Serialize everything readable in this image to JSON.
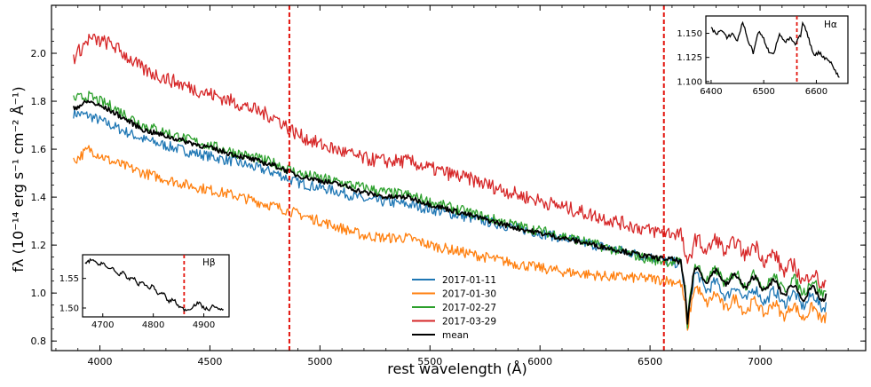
{
  "chart_data": {
    "type": "line",
    "xlabel": "rest wavelength (Å)",
    "ylabel": "fλ (10⁻¹⁴ erg s⁻¹ cm⁻² Å⁻¹)",
    "xlim": [
      3780,
      7480
    ],
    "ylim": [
      0.76,
      2.2
    ],
    "xticks": [
      4000,
      4500,
      5000,
      5500,
      6000,
      6500,
      7000
    ],
    "yticks": [
      0.8,
      1.0,
      1.2,
      1.4,
      1.6,
      1.8,
      2.0
    ],
    "xtick_labels": [
      "4000",
      "4500",
      "5000",
      "5500",
      "6000",
      "6500",
      "7000"
    ],
    "ytick_labels": [
      "0.8",
      "1.0",
      "1.2",
      "1.4",
      "1.6",
      "1.8",
      "2.0"
    ],
    "vlines": [
      {
        "x": 4861,
        "color": "#e3120b",
        "style": "dashed"
      },
      {
        "x": 6563,
        "color": "#e3120b",
        "style": "dashed"
      }
    ],
    "legend_position": "bottom-center",
    "series": [
      {
        "name": "2017-01-11",
        "color": "#1f77b4",
        "x": [
          3880,
          3950,
          4050,
          4200,
          4400,
          4600,
          4800,
          4900,
          5000,
          5100,
          5200,
          5300,
          5400,
          5500,
          5700,
          5900,
          6100,
          6300,
          6500,
          6600,
          6640,
          6660,
          6670,
          6680,
          6700,
          6800,
          6900,
          7000,
          7100,
          7200,
          7300
        ],
        "y": [
          1.75,
          1.74,
          1.7,
          1.64,
          1.59,
          1.55,
          1.5,
          1.46,
          1.44,
          1.42,
          1.39,
          1.38,
          1.37,
          1.35,
          1.31,
          1.27,
          1.23,
          1.19,
          1.15,
          1.13,
          1.12,
          1.0,
          0.86,
          0.95,
          1.06,
          1.02,
          1.0,
          0.99,
          0.98,
          0.97,
          0.96
        ]
      },
      {
        "name": "2017-01-30",
        "color": "#ff7f0e",
        "x": [
          3880,
          3950,
          4050,
          4200,
          4400,
          4600,
          4800,
          4900,
          5000,
          5100,
          5200,
          5300,
          5400,
          5500,
          5700,
          5900,
          6100,
          6300,
          6500,
          6600,
          6640,
          6660,
          6670,
          6680,
          6700,
          6800,
          6900,
          7000,
          7100,
          7200,
          7300
        ],
        "y": [
          1.55,
          1.6,
          1.55,
          1.5,
          1.45,
          1.41,
          1.36,
          1.33,
          1.3,
          1.27,
          1.24,
          1.23,
          1.23,
          1.2,
          1.16,
          1.12,
          1.09,
          1.07,
          1.06,
          1.05,
          1.04,
          0.95,
          0.83,
          0.92,
          1.0,
          0.97,
          0.95,
          0.94,
          0.93,
          0.92,
          0.91
        ]
      },
      {
        "name": "2017-02-27",
        "color": "#2ca02c",
        "x": [
          3880,
          3950,
          4050,
          4200,
          4400,
          4600,
          4800,
          4900,
          5000,
          5100,
          5200,
          5300,
          5400,
          5500,
          5700,
          5900,
          6100,
          6300,
          6500,
          6600,
          6640,
          6660,
          6670,
          6680,
          6700,
          6800,
          6900,
          7000,
          7100,
          7200,
          7300
        ],
        "y": [
          1.81,
          1.82,
          1.78,
          1.7,
          1.64,
          1.59,
          1.54,
          1.5,
          1.48,
          1.46,
          1.44,
          1.42,
          1.41,
          1.38,
          1.33,
          1.28,
          1.24,
          1.19,
          1.14,
          1.13,
          1.13,
          1.02,
          0.87,
          0.97,
          1.09,
          1.07,
          1.06,
          1.05,
          1.04,
          1.03,
          1.02
        ]
      },
      {
        "name": "2017-03-29",
        "color": "#d62728",
        "x": [
          3880,
          3950,
          4050,
          4200,
          4400,
          4600,
          4800,
          4900,
          5000,
          5100,
          5200,
          5300,
          5400,
          5500,
          5700,
          5900,
          6100,
          6300,
          6500,
          6600,
          6640,
          6660,
          6670,
          6680,
          6700,
          6800,
          6900,
          7000,
          7100,
          7200,
          7300
        ],
        "y": [
          1.98,
          2.06,
          2.04,
          1.93,
          1.86,
          1.8,
          1.73,
          1.66,
          1.62,
          1.59,
          1.56,
          1.55,
          1.55,
          1.52,
          1.47,
          1.41,
          1.36,
          1.31,
          1.26,
          1.25,
          1.25,
          1.16,
          1.1,
          1.15,
          1.2,
          1.2,
          1.19,
          1.17,
          1.12,
          1.07,
          1.05
        ]
      },
      {
        "name": "mean",
        "color": "#000000",
        "x": [
          3880,
          3950,
          4050,
          4200,
          4400,
          4600,
          4800,
          4900,
          5000,
          5100,
          5200,
          5300,
          5400,
          5500,
          5700,
          5900,
          6100,
          6300,
          6500,
          6600,
          6640,
          6660,
          6670,
          6680,
          6700,
          6800,
          6900,
          7000,
          7100,
          7200,
          7300
        ],
        "y": [
          1.77,
          1.8,
          1.76,
          1.68,
          1.63,
          1.58,
          1.53,
          1.49,
          1.47,
          1.45,
          1.42,
          1.4,
          1.4,
          1.37,
          1.32,
          1.27,
          1.23,
          1.19,
          1.15,
          1.14,
          1.13,
          1.0,
          0.87,
          0.96,
          1.08,
          1.07,
          1.05,
          1.04,
          1.02,
          1.0,
          0.99
        ]
      }
    ],
    "insets": [
      {
        "name": "inset-hbeta",
        "label": "Hβ",
        "xlim": [
          4660,
          4950
        ],
        "ylim": [
          1.485,
          1.59
        ],
        "xticks": [
          4700,
          4800,
          4900
        ],
        "xtick_labels": [
          "4700",
          "4800",
          "4900"
        ],
        "yticks": [
          1.5,
          1.55
        ],
        "ytick_labels": [
          "1.50",
          "1.55"
        ],
        "vline": 4861,
        "x": [
          4665,
          4680,
          4690,
          4700,
          4710,
          4720,
          4730,
          4740,
          4750,
          4760,
          4770,
          4780,
          4790,
          4800,
          4810,
          4820,
          4830,
          4840,
          4850,
          4860,
          4870,
          4880,
          4890,
          4900,
          4910,
          4920,
          4930,
          4940
        ],
        "y": [
          1.575,
          1.583,
          1.572,
          1.578,
          1.565,
          1.568,
          1.556,
          1.56,
          1.548,
          1.552,
          1.54,
          1.544,
          1.533,
          1.538,
          1.522,
          1.526,
          1.51,
          1.515,
          1.503,
          1.498,
          1.497,
          1.504,
          1.509,
          1.5,
          1.497,
          1.505,
          1.496,
          1.5
        ]
      },
      {
        "name": "inset-halpha",
        "label": "Hα",
        "xlim": [
          6390,
          6660
        ],
        "ylim": [
          1.098,
          1.168
        ],
        "xticks": [
          6400,
          6500,
          6600
        ],
        "xtick_labels": [
          "6400",
          "6500",
          "6600"
        ],
        "yticks": [
          1.1,
          1.125,
          1.15
        ],
        "ytick_labels": [
          "1.100",
          "1.125",
          "1.150"
        ],
        "vline": 6563,
        "x": [
          6400,
          6410,
          6420,
          6430,
          6440,
          6450,
          6460,
          6470,
          6480,
          6490,
          6500,
          6510,
          6520,
          6530,
          6540,
          6550,
          6560,
          6570,
          6575,
          6585,
          6595,
          6605,
          6615,
          6625,
          6635,
          6645
        ],
        "y": [
          1.155,
          1.15,
          1.153,
          1.145,
          1.15,
          1.142,
          1.162,
          1.143,
          1.13,
          1.152,
          1.144,
          1.131,
          1.13,
          1.15,
          1.14,
          1.145,
          1.138,
          1.148,
          1.162,
          1.145,
          1.128,
          1.13,
          1.125,
          1.122,
          1.112,
          1.103
        ]
      }
    ]
  }
}
